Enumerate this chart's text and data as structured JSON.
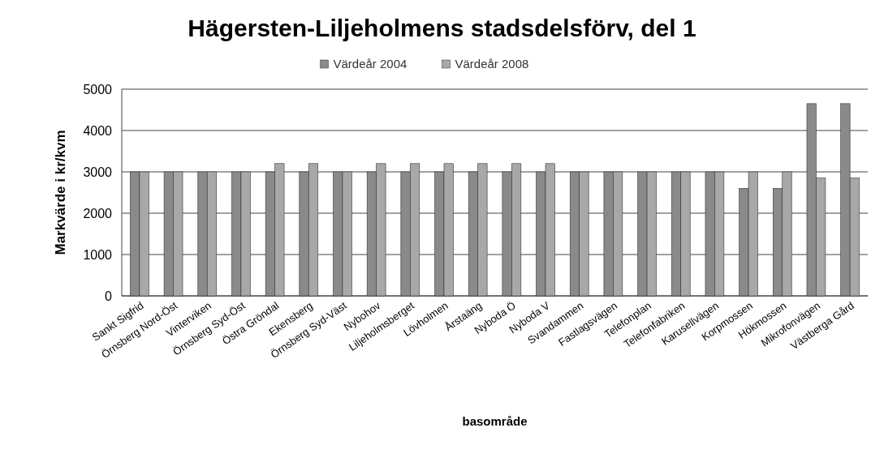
{
  "chart_data": {
    "type": "bar",
    "title": "Hägersten-Liljeholmens stadsdelsförv, del 1",
    "xlabel": "basområde",
    "ylabel": "Markvärde  i kr/kvm",
    "categories": [
      "Sankt Sigfrid",
      "Örnsberg Nord-Öst",
      "Vinterviken",
      "Örnsberg Syd-Öst",
      "Östra Gröndal",
      "Ekensberg",
      "Örnsberg Syd-Väst",
      "Nybohov",
      "Liljeholmsberget",
      "Lövholmen",
      "Årstaäng",
      "Nyboda Ö",
      "Nyboda V",
      "Svandammen",
      "Fastlagsvägen",
      "Telefonplan",
      "Telefonfabriken",
      "Karusellvägen",
      "Korpmossen",
      "Hökmossen",
      "Mikrofonvägen",
      "Västberga Gård"
    ],
    "series": [
      {
        "name": "Värdeår 2004",
        "color": "#8a8a8a",
        "values": [
          3000,
          3000,
          3000,
          3000,
          3000,
          3000,
          3000,
          3000,
          3000,
          3000,
          3000,
          3000,
          3000,
          3000,
          3000,
          3000,
          3000,
          3000,
          2600,
          2600,
          4650,
          4650
        ]
      },
      {
        "name": "Värdeår 2008",
        "color": "#a8a8a8",
        "values": [
          3000,
          3000,
          3000,
          3000,
          3200,
          3200,
          3000,
          3200,
          3200,
          3200,
          3200,
          3200,
          3200,
          3000,
          3000,
          3000,
          3000,
          3000,
          3000,
          3000,
          2850,
          2850
        ]
      }
    ],
    "ylim": [
      0,
      5000
    ],
    "yticks": [
      0,
      1000,
      2000,
      3000,
      4000,
      5000
    ],
    "grid": "y",
    "legend": "top"
  }
}
